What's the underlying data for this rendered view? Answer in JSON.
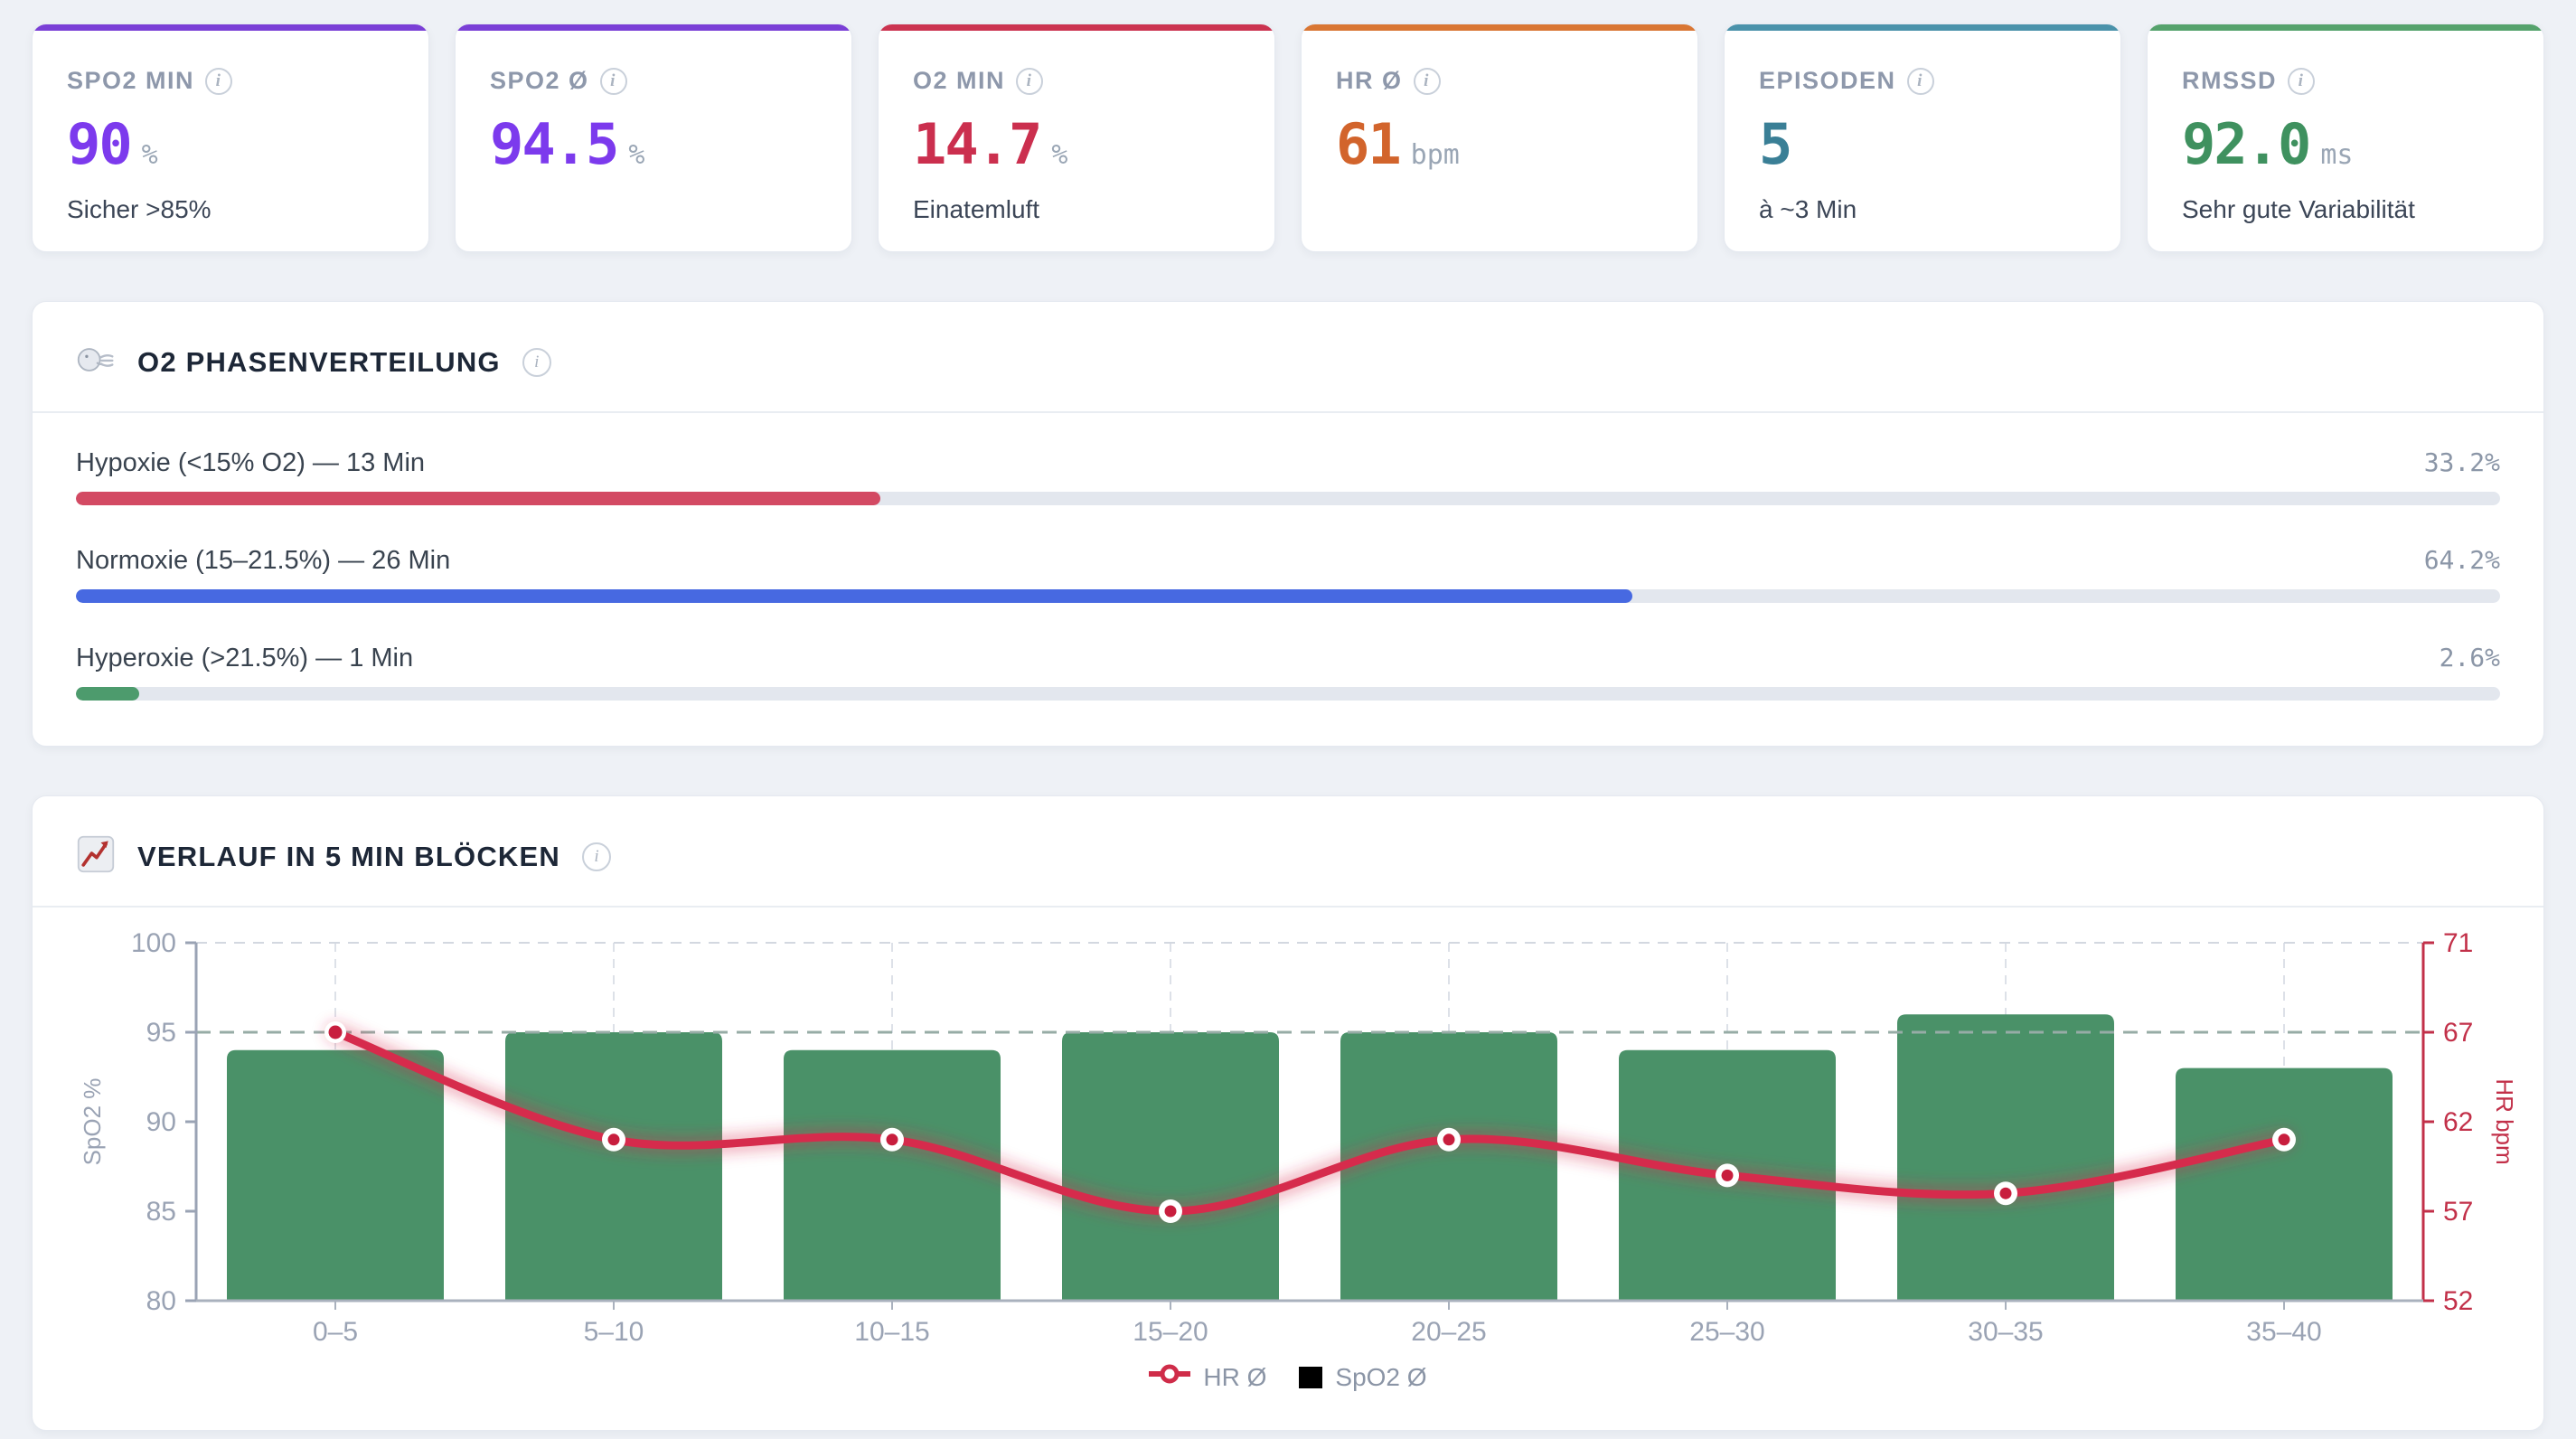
{
  "page": {
    "background": "#eef1f6"
  },
  "stat_cards": [
    {
      "label": "SPO2 MIN",
      "value": "90",
      "unit": "%",
      "subtitle": "Sicher >85%",
      "accent": "#7a3fd6",
      "value_color": "#7c3aed"
    },
    {
      "label": "SPO2 Ø",
      "value": "94.5",
      "unit": "%",
      "subtitle": "",
      "accent": "#7a3fd6",
      "value_color": "#7c3aed"
    },
    {
      "label": "O2 MIN",
      "value": "14.7",
      "unit": "%",
      "subtitle": "Einatemluft",
      "accent": "#cb3350",
      "value_color": "#cb2f4e"
    },
    {
      "label": "HR Ø",
      "value": "61",
      "unit": "bpm",
      "subtitle": "",
      "accent": "#d97633",
      "value_color": "#d2642c"
    },
    {
      "label": "EPISODEN",
      "value": "5",
      "unit": "",
      "subtitle": "à ~3 Min",
      "accent": "#4a92aa",
      "value_color": "#3a7f96"
    },
    {
      "label": "RMSSD",
      "value": "92.0",
      "unit": "ms",
      "subtitle": "Sehr gute Variabilität",
      "accent": "#55a26c",
      "value_color": "#3f915f"
    }
  ],
  "phases": {
    "title": "O2 PHASENVERTEILUNG",
    "icon": "breath-icon",
    "rows": [
      {
        "label": "Hypoxie (<15% O2) — 13 Min",
        "percent_text": "33.2%",
        "percent": 33.2,
        "color": "#d34a63"
      },
      {
        "label": "Normoxie (15–21.5%) — 26 Min",
        "percent_text": "64.2%",
        "percent": 64.2,
        "color": "#4769e1"
      },
      {
        "label": "Hyperoxie (>21.5%) — 1 Min",
        "percent_text": "2.6%",
        "percent": 2.6,
        "color": "#4d9b6d"
      }
    ]
  },
  "chart_data": {
    "type": "bar+line",
    "title": "VERLAUF IN 5 MIN BLÖCKEN",
    "icon": "chart-up-icon",
    "categories": [
      "0–5",
      "5–10",
      "10–15",
      "15–20",
      "20–25",
      "25–30",
      "30–35",
      "35–40"
    ],
    "series": [
      {
        "name": "SpO2 Ø",
        "type": "bar",
        "axis": "left",
        "color": "#4a9168",
        "values": [
          94,
          95,
          94,
          95,
          95,
          94,
          96,
          93
        ]
      },
      {
        "name": "HR Ø",
        "type": "line",
        "axis": "right",
        "color": "#d62b4c",
        "values": [
          67,
          61,
          61,
          57,
          61,
          59,
          58,
          61
        ]
      }
    ],
    "left_axis": {
      "label": "SpO2 %",
      "min": 80,
      "max": 100,
      "ticks": [
        100,
        95,
        90,
        85,
        80
      ],
      "color": "#9aa3b4"
    },
    "right_axis": {
      "label": "HR bpm",
      "ticks": [
        71,
        67,
        62,
        57,
        52
      ],
      "color": "#c23049"
    },
    "target_line": {
      "value": 95,
      "color": "#97aca6"
    },
    "grid": {
      "vertical_dashed": true,
      "top_dashed_color": "#d3d8e0",
      "vline_color": "#dde1e8"
    },
    "legend": [
      {
        "label": "HR Ø",
        "marker": "red-line-dot"
      },
      {
        "label": "SpO2 Ø",
        "marker": "black-square"
      }
    ]
  }
}
